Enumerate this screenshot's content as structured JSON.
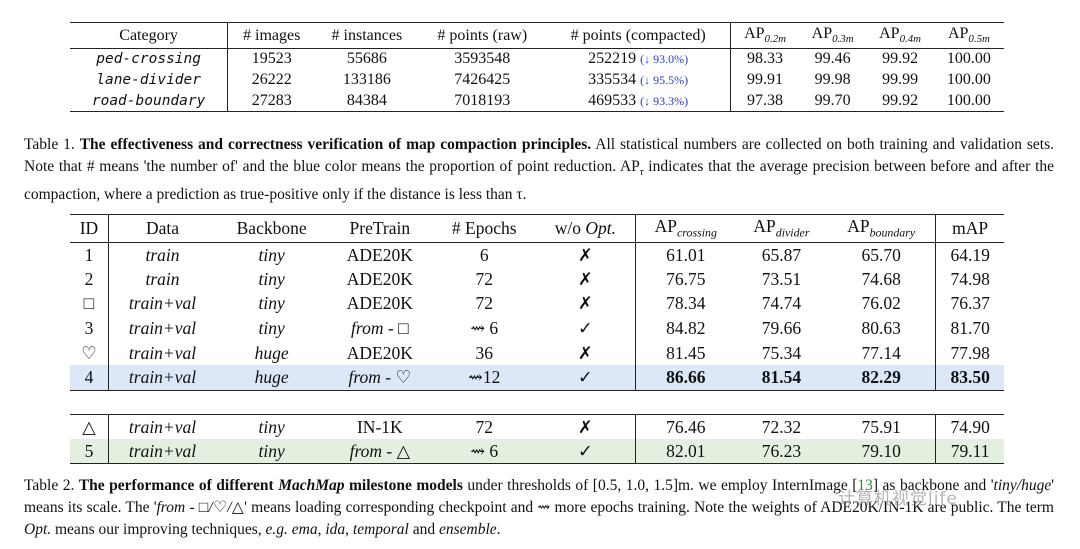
{
  "table1": {
    "headers": [
      "Category",
      "# images",
      "# instances",
      "# points (raw)",
      "# points (compacted)",
      "AP",
      "AP",
      "AP",
      "AP"
    ],
    "ap_subs": [
      "0.2m",
      "0.3m",
      "0.4m",
      "0.5m"
    ],
    "rows": [
      {
        "category": "ped-crossing",
        "images": "19523",
        "instances": "55686",
        "raw": "3593548",
        "compacted": "252219",
        "reduction": "(↓ 93.0%)",
        "ap": [
          "98.33",
          "99.46",
          "99.92",
          "100.00"
        ]
      },
      {
        "category": "lane-divider",
        "images": "26222",
        "instances": "133186",
        "raw": "7426425",
        "compacted": "335534",
        "reduction": "(↓ 95.5%)",
        "ap": [
          "99.91",
          "99.98",
          "99.99",
          "100.00"
        ]
      },
      {
        "category": "road-boundary",
        "images": "27283",
        "instances": "84384",
        "raw": "7018193",
        "compacted": "469533",
        "reduction": "(↓ 93.3%)",
        "ap": [
          "97.38",
          "99.70",
          "99.92",
          "100.00"
        ]
      }
    ]
  },
  "caption1": {
    "prefix": "Table 1.",
    "bold": "The effectiveness and correctness verification of map compaction principles.",
    "rest": "All statistical numbers are collected on both training and validation sets. Note that # means 'the number of' and the blue color means the proportion of point reduction. AP",
    "tau_sub": "τ",
    "rest2": "indicates that the average precision between before and after the compaction, where a prediction as true-positive only if the distance is less than τ."
  },
  "table2": {
    "headers": [
      "ID",
      "Data",
      "Backbone",
      "PreTrain",
      "# Epochs",
      "w/o",
      "Opt.",
      "AP",
      "AP",
      "AP",
      "mAP"
    ],
    "ap_subs": [
      "crossing",
      "divider",
      "boundary"
    ],
    "rows": [
      {
        "id": "1",
        "data": "train",
        "backbone": "tiny",
        "pretrain": "ADE20K",
        "epochs": "6",
        "opt": "✗",
        "vals": [
          "61.01",
          "65.87",
          "65.70",
          "64.19"
        ]
      },
      {
        "id": "2",
        "data": "train",
        "backbone": "tiny",
        "pretrain": "ADE20K",
        "epochs": "72",
        "opt": "✗",
        "vals": [
          "76.75",
          "73.51",
          "74.68",
          "74.98"
        ]
      },
      {
        "id": "□",
        "data": "train+val",
        "backbone": "tiny",
        "pretrain": "ADE20K",
        "epochs": "72",
        "opt": "✗",
        "vals": [
          "78.34",
          "74.74",
          "76.02",
          "76.37"
        ]
      },
      {
        "id": "3",
        "data": "train+val",
        "backbone": "tiny",
        "pretrain": "from - □",
        "epochs": "⇝ 6",
        "opt": "✓",
        "vals": [
          "84.82",
          "79.66",
          "80.63",
          "81.70"
        ]
      },
      {
        "id": "♡",
        "data": "train+val",
        "backbone": "huge",
        "pretrain": "ADE20K",
        "epochs": "36",
        "opt": "✗",
        "vals": [
          "81.45",
          "75.34",
          "77.14",
          "77.98"
        ]
      },
      {
        "id": "4",
        "data": "train+val",
        "backbone": "huge",
        "pretrain": "from - ♡",
        "epochs": "⇝12",
        "opt": "✓",
        "vals": [
          "86.66",
          "81.54",
          "82.29",
          "83.50"
        ]
      },
      {
        "id": "△",
        "data": "train+val",
        "backbone": "tiny",
        "pretrain": "IN-1K",
        "epochs": "72",
        "opt": "✗",
        "vals": [
          "76.46",
          "72.32",
          "75.91",
          "74.90"
        ]
      },
      {
        "id": "5",
        "data": "train+val",
        "backbone": "tiny",
        "pretrain": "from - △",
        "epochs": "⇝ 6",
        "opt": "✓",
        "vals": [
          "82.01",
          "76.23",
          "79.10",
          "79.11"
        ]
      }
    ]
  },
  "caption2": {
    "prefix": "Table 2.",
    "bold1": "The performance of different",
    "bold_it": "MachMap",
    "bold2": "milestone models",
    "rest1": "under thresholds of [0.5, 1.0, 1.5]m. we employ InternImage [",
    "ref": "13",
    "rest2": "] as backbone and '",
    "it1": "tiny/huge",
    "rest3": "' means its scale. The '",
    "it2": "from - □/♡/△",
    "rest4": "' means loading corresponding checkpoint and ⇝ more epochs training. Note the weights of ADE20K/IN-1K are public. The term",
    "it3": "Opt.",
    "rest5": "means our improving techniques,",
    "it4": "e.g. ema",
    "rest6": ",",
    "it5": "ida",
    "rest7": ",",
    "it6": "temporal",
    "rest8": "and",
    "it7": "ensemble",
    "rest9": "."
  },
  "watermark": "计算机视觉life",
  "colors": {
    "reduction": "#2a3dbf",
    "highlight_blue": "#dce8f8",
    "highlight_green": "#e3f0df",
    "ref": "#2e8b3a"
  }
}
